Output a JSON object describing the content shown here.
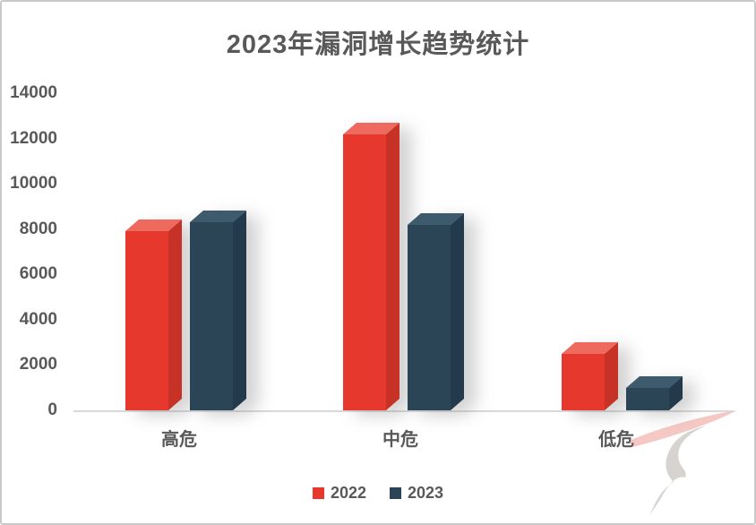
{
  "page": {
    "title": "2023年漏洞增长趋势统计"
  },
  "chart_data": {
    "type": "bar",
    "style": "3d-column",
    "title": "2023年漏洞增长趋势统计",
    "categories": [
      "高危",
      "中危",
      "低危"
    ],
    "series": [
      {
        "name": "2022",
        "color": "#e7382d",
        "color_top": "#ee6a5f",
        "color_side": "#c73227",
        "values": [
          7900,
          12200,
          2500
        ]
      },
      {
        "name": "2023",
        "color": "#2b4456",
        "color_top": "#3e5a6d",
        "color_side": "#223a4b",
        "values": [
          8300,
          8200,
          1000
        ]
      }
    ],
    "ylim": [
      0,
      14000
    ],
    "ytick_step": 2000,
    "yticks": [
      "0",
      "2000",
      "4000",
      "6000",
      "8000",
      "10000",
      "12000",
      "14000"
    ],
    "grid": false,
    "legend_position": "bottom",
    "text_color": "#595959",
    "axis_line_color": "#d9d9d9"
  },
  "watermark": {
    "swoosh_color": "#f5c8c4",
    "ribbon_color": "#d6d3d0"
  }
}
